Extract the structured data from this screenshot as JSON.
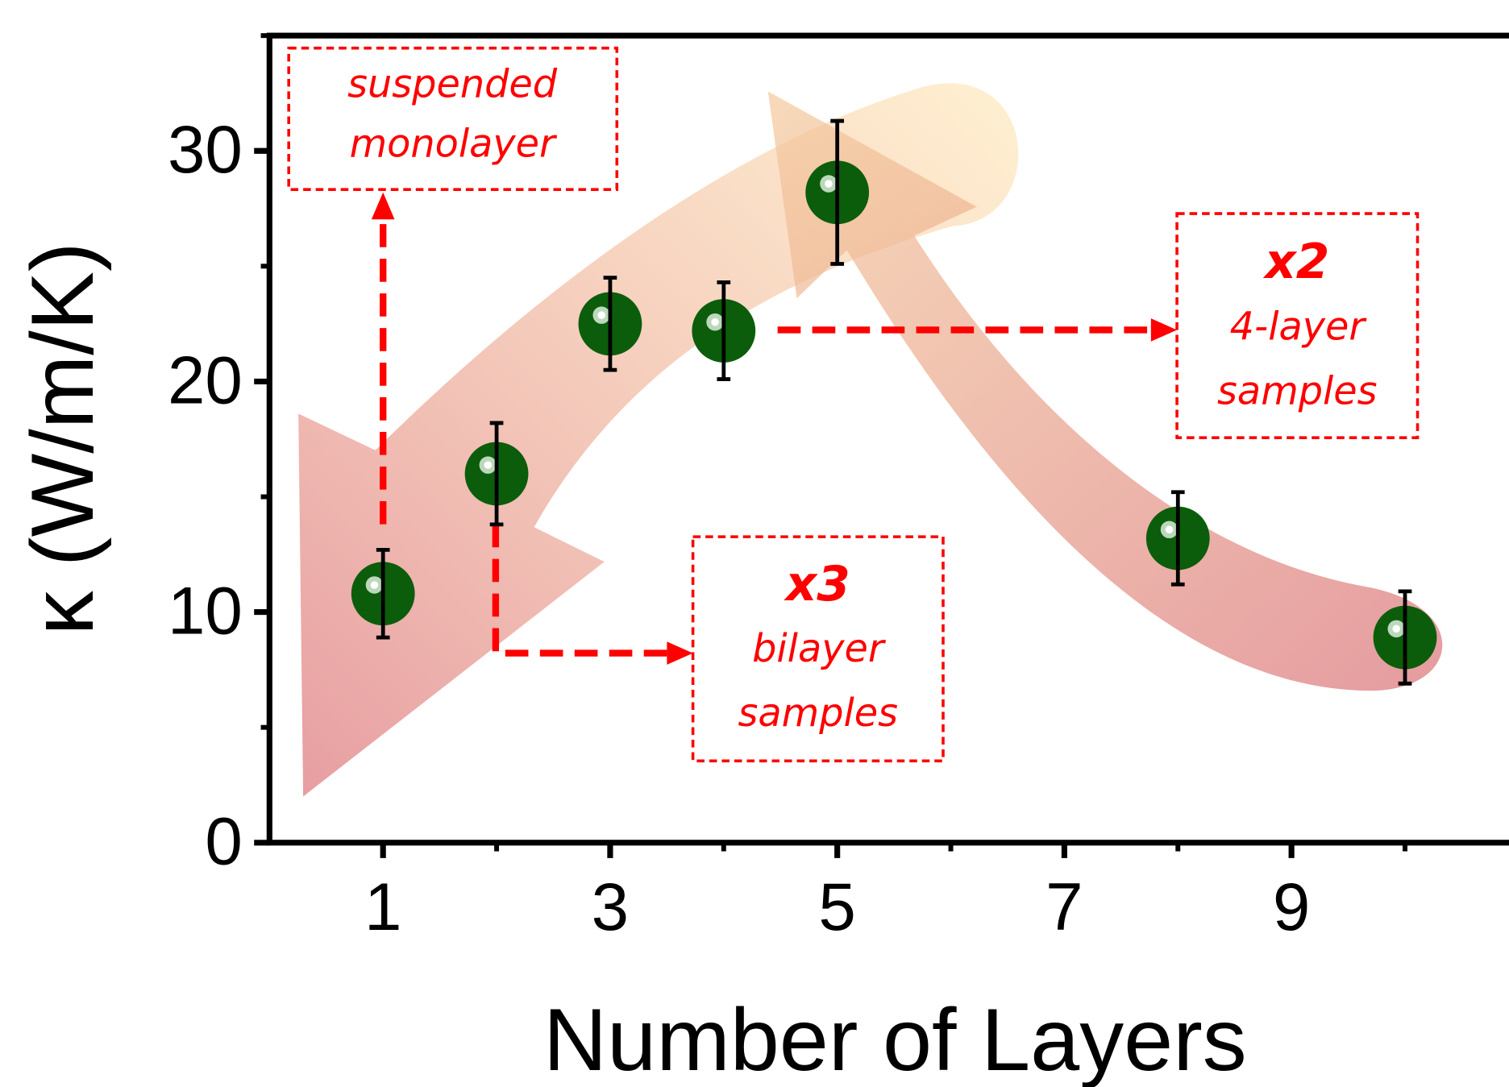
{
  "chart_data": {
    "type": "scatter",
    "x": [
      1,
      2,
      3,
      4,
      5,
      8,
      10
    ],
    "values": [
      10.8,
      16,
      22.5,
      22.2,
      28.2,
      13.2,
      8.9
    ],
    "errors": [
      1.9,
      2.2,
      2,
      2.1,
      3.1,
      2,
      2
    ],
    "color": "#0b5d0b",
    "xlabel": "Number of Layers",
    "ylabel": "κ (W/m/K)",
    "xlim": [
      0,
      11
    ],
    "ylim": [
      0,
      35
    ],
    "xticks": [
      1,
      3,
      5,
      7,
      9
    ],
    "xminorticks": [
      2,
      4,
      6,
      8,
      10
    ],
    "yticks": [
      0,
      10,
      20,
      30
    ],
    "yminorticks": [
      5,
      15,
      25,
      35
    ],
    "annotations": [
      {
        "lines": [
          "suspended",
          "monolayer"
        ]
      },
      {
        "lines": [
          "x2",
          "4-layer",
          "samples"
        ]
      },
      {
        "lines": [
          "x3",
          "bilayer",
          "samples"
        ]
      }
    ]
  }
}
